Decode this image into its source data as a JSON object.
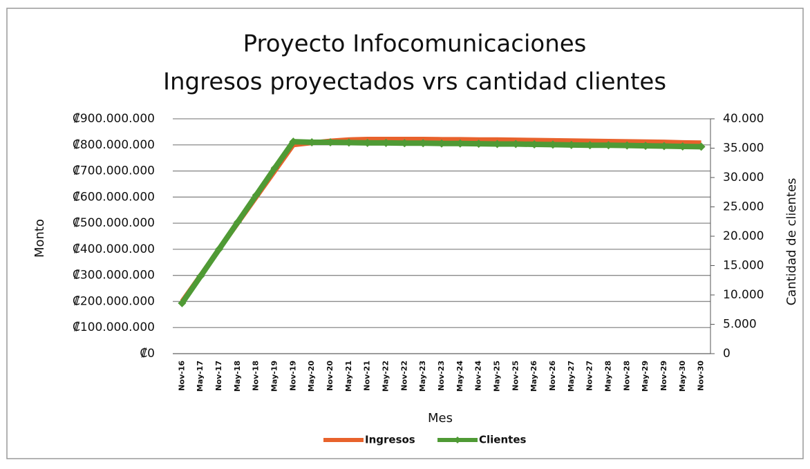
{
  "chart_data": {
    "type": "line",
    "title": "Proyecto Infocomunicaciones",
    "subtitle": "Ingresos proyectados vrs cantidad clientes",
    "y_label": "Monto",
    "y2_label": "Cantidad de clientes",
    "x_label": "Mes",
    "categories": [
      "Nov-16",
      "May-17",
      "Nov-17",
      "May-18",
      "Nov-18",
      "May-19",
      "Nov-19",
      "May-20",
      "Nov-20",
      "May-21",
      "Nov-21",
      "May-22",
      "Nov-22",
      "May-23",
      "Nov-23",
      "May-24",
      "Nov-24",
      "May-25",
      "Nov-25",
      "May-26",
      "Nov-26",
      "May-27",
      "Nov-27",
      "May-28",
      "Nov-28",
      "May-29",
      "Nov-29",
      "May-30",
      "Nov-30"
    ],
    "series": [
      {
        "name": "Ingresos",
        "color": "#e8622c",
        "values": [
          200000000,
          300000000,
          400000000,
          500000000,
          600000000,
          700000000,
          800000000,
          808000000,
          815000000,
          820000000,
          822000000,
          822000000,
          822000000,
          822000000,
          821000000,
          821000000,
          820000000,
          820000000,
          819000000,
          818000000,
          817000000,
          816000000,
          815000000,
          814000000,
          813000000,
          812000000,
          811000000,
          809000000,
          808000000
        ]
      },
      {
        "name": "Clientes",
        "color": "#4f9a35",
        "axis": "y2",
        "values": [
          8600,
          13200,
          17800,
          22400,
          27000,
          31600,
          36100,
          36000,
          36000,
          35950,
          35900,
          35900,
          35850,
          35850,
          35800,
          35800,
          35750,
          35700,
          35700,
          35650,
          35600,
          35550,
          35500,
          35500,
          35450,
          35400,
          35350,
          35300,
          35250
        ]
      }
    ],
    "ylim": [
      0,
      900000000
    ],
    "yticks": [
      {
        "value": 0,
        "label": "₡0"
      },
      {
        "value": 100000000,
        "label": "₡100.000.000"
      },
      {
        "value": 200000000,
        "label": "₡200.000.000"
      },
      {
        "value": 300000000,
        "label": "₡300.000.000"
      },
      {
        "value": 400000000,
        "label": "₡400.000.000"
      },
      {
        "value": 500000000,
        "label": "₡500.000.000"
      },
      {
        "value": 600000000,
        "label": "₡600.000.000"
      },
      {
        "value": 700000000,
        "label": "₡700.000.000"
      },
      {
        "value": 800000000,
        "label": "₡800.000.000"
      },
      {
        "value": 900000000,
        "label": "₡900.000.000"
      }
    ],
    "y2lim": [
      0,
      40000
    ],
    "y2ticks": [
      0,
      {
        "value": 5000,
        "label": "5.000"
      },
      {
        "value": 10000,
        "label": "10.000"
      },
      {
        "value": 15000,
        "label": "15.000"
      },
      {
        "value": 20000,
        "label": "20.000"
      },
      {
        "value": 25000,
        "label": "25.000"
      },
      {
        "value": 30000,
        "label": "30.000"
      },
      {
        "value": 35000,
        "label": "35.000"
      },
      {
        "value": 40000,
        "label": "40.000"
      }
    ],
    "grid": true,
    "legend": "bottom"
  }
}
